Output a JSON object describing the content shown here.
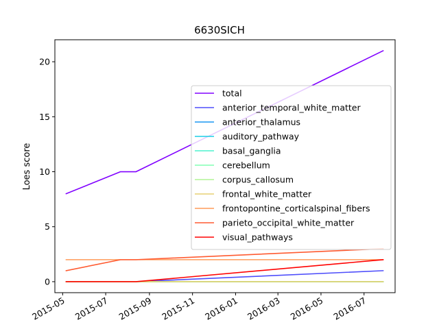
{
  "chart_data": {
    "type": "line",
    "title": "6630SICH",
    "xlabel": "",
    "ylabel": "Loes score",
    "x_type": "date",
    "x": [
      "2015-05-06",
      "2015-07-22",
      "2015-08-13",
      "2016-07-28"
    ],
    "xlim": [
      "2015-04-20",
      "2016-08-14"
    ],
    "ylim": [
      -1,
      22
    ],
    "x_ticks": [
      "2015-05",
      "2015-07",
      "2015-09",
      "2015-11",
      "2016-01",
      "2016-03",
      "2016-05",
      "2016-07"
    ],
    "x_tick_dates": [
      "2015-05-01",
      "2015-07-01",
      "2015-09-01",
      "2015-11-01",
      "2016-01-01",
      "2016-03-01",
      "2016-05-01",
      "2016-07-01"
    ],
    "y_ticks": [
      0,
      5,
      10,
      15,
      20
    ],
    "grid": false,
    "legend_position": "center-right",
    "series": [
      {
        "name": "total",
        "color": "#8000ff",
        "values": [
          8,
          10,
          10,
          21
        ]
      },
      {
        "name": "anterior_temporal_white_matter",
        "color": "#4d4dfb",
        "values": [
          0,
          0,
          0,
          1
        ]
      },
      {
        "name": "anterior_thalamus",
        "color": "#1996f3",
        "values": [
          0,
          0,
          0,
          0
        ]
      },
      {
        "name": "auditory_pathway",
        "color": "#1acfe6",
        "values": [
          0,
          0,
          0,
          0
        ]
      },
      {
        "name": "basal_ganglia",
        "color": "#4cf2ce",
        "values": [
          0,
          0,
          0,
          0
        ]
      },
      {
        "name": "cerebellum",
        "color": "#80ffb4",
        "values": [
          0,
          0,
          0,
          0
        ]
      },
      {
        "name": "corpus_callosum",
        "color": "#b2f396",
        "values": [
          0,
          0,
          0,
          0
        ]
      },
      {
        "name": "frontal_white_matter",
        "color": "#e6cf72",
        "values": [
          0,
          0,
          0,
          0
        ]
      },
      {
        "name": "frontopontine_corticalspinal_fibers",
        "color": "#ff9a58",
        "values": [
          2,
          2,
          2,
          2
        ]
      },
      {
        "name": "parieto_occipital_white_matter",
        "color": "#ff5a30",
        "values": [
          1,
          2,
          2,
          3
        ]
      },
      {
        "name": "visual_pathways",
        "color": "#ff0000",
        "values": [
          0,
          0,
          0,
          2
        ]
      }
    ]
  }
}
